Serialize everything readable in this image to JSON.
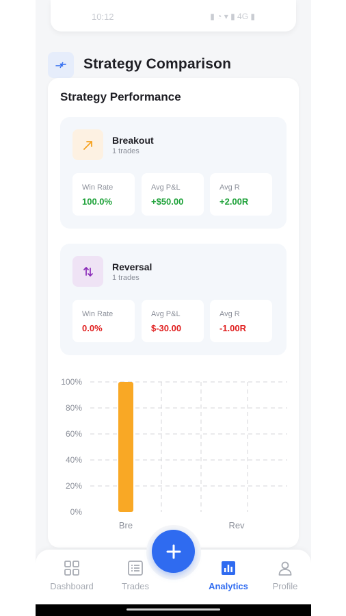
{
  "status_bar": {
    "time": "10:12",
    "right_text": "▮ ◔ ▾ ▮ 4G ▮"
  },
  "header": {
    "title": "Strategy Comparison",
    "icon": "compare-arrows-icon"
  },
  "card": {
    "title": "Strategy Performance"
  },
  "strategies": [
    {
      "name": "Breakout",
      "trades": "1 trades",
      "icon": "trend-up-arrow-icon",
      "icon_color": "#f6a21f",
      "icon_bg": "#fdf1e2",
      "stats": [
        {
          "label": "Win Rate",
          "value": "100.0%",
          "tone": "positive"
        },
        {
          "label": "Avg P&L",
          "value": "+$50.00",
          "tone": "positive"
        },
        {
          "label": "Avg R",
          "value": "+2.00R",
          "tone": "positive"
        }
      ]
    },
    {
      "name": "Reversal",
      "trades": "1 trades",
      "icon": "swap-vertical-icon",
      "icon_color": "#8a2ab8",
      "icon_bg": "#efe3f5",
      "stats": [
        {
          "label": "Win Rate",
          "value": "0.0%",
          "tone": "negative"
        },
        {
          "label": "Avg P&L",
          "value": "$-30.00",
          "tone": "negative"
        },
        {
          "label": "Avg R",
          "value": "-1.00R",
          "tone": "negative"
        }
      ]
    }
  ],
  "chart_data": {
    "type": "bar",
    "categories": [
      "Bre",
      "Rev"
    ],
    "values": [
      100,
      0
    ],
    "y_ticks": [
      "100%",
      "80%",
      "60%",
      "40%",
      "20%",
      "0%"
    ],
    "ylim": [
      0,
      100
    ],
    "bar_color": "#f9a825",
    "grid": true
  },
  "nav": {
    "items": [
      {
        "label": "Dashboard",
        "icon": "dashboard-grid-icon",
        "active": false
      },
      {
        "label": "Trades",
        "icon": "trades-list-icon",
        "active": false
      },
      {
        "label": "Analytics",
        "icon": "analytics-bar-chart-icon",
        "active": true
      },
      {
        "label": "Profile",
        "icon": "profile-person-icon",
        "active": false
      }
    ],
    "fab_icon": "plus-icon"
  },
  "colors": {
    "accent": "#2f6bf0",
    "positive": "#1fa23a",
    "negative": "#e02020"
  }
}
